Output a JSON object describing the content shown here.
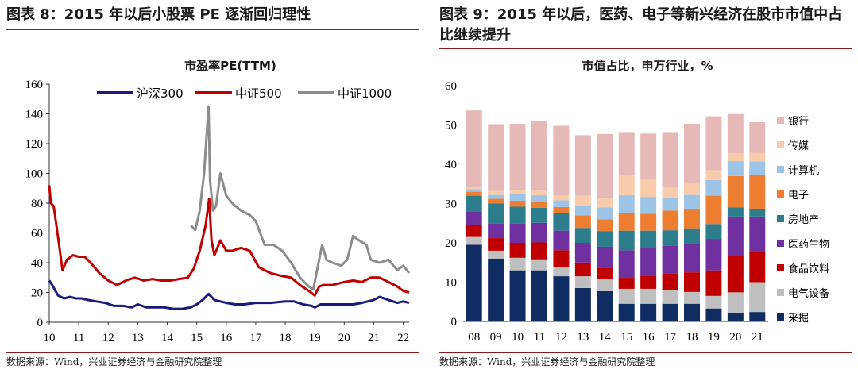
{
  "left": {
    "figure_title": "图表 8：2015 年以后小股票 PE 逐渐回归理性",
    "chart_title": "市盈率PE(TTM)",
    "source": "数据来源：Wind，兴业证券经济与金融研究院整理"
  },
  "right": {
    "figure_title": "图表 9：2015 年以后，医药、电子等新兴经济在股市市值中占比继续提升",
    "chart_title": "市值占比，申万行业，%",
    "source": "数据来源：Wind，兴业证券经济与金融研究院整理"
  },
  "colors": {
    "hs300": "#1a1a7a",
    "zz500": "#c00000",
    "zz1000": "#8c8c8c",
    "rule": "#8a1a1a",
    "采掘": "#0f2d62",
    "电气设备": "#bfbfbf",
    "食品饮料": "#c00000",
    "医药生物": "#7030a0",
    "房地产": "#2e7d8c",
    "电子": "#ed7d31",
    "计算机": "#9dc3e6",
    "传媒": "#f8cbad",
    "银行": "#e6b9b8"
  },
  "chart_data": [
    {
      "type": "line",
      "title": "市盈率PE(TTM)",
      "ylim": [
        0,
        160
      ],
      "y_ticks": [
        0,
        20,
        40,
        60,
        80,
        100,
        120,
        140,
        160
      ],
      "x_tick_labels": [
        "10",
        "11",
        "12",
        "13",
        "14",
        "15",
        "16",
        "17",
        "18",
        "19",
        "20",
        "21",
        "22"
      ],
      "xlim": [
        2010.0,
        2022.2
      ],
      "legend_position": "top",
      "series": [
        {
          "name": "沪深300",
          "x": [
            2010.0,
            2010.1,
            2010.3,
            2010.5,
            2010.7,
            2010.9,
            2011.1,
            2011.3,
            2011.6,
            2011.9,
            2012.2,
            2012.5,
            2012.8,
            2013.0,
            2013.3,
            2013.6,
            2013.9,
            2014.2,
            2014.5,
            2014.8,
            2015.0,
            2015.2,
            2015.4,
            2015.5,
            2015.6,
            2015.8,
            2016.0,
            2016.3,
            2016.6,
            2017.0,
            2017.5,
            2018.0,
            2018.3,
            2018.6,
            2018.9,
            2019.0,
            2019.2,
            2019.5,
            2020.0,
            2020.3,
            2020.6,
            2021.0,
            2021.2,
            2021.5,
            2021.8,
            2022.0,
            2022.2
          ],
          "values": [
            28,
            25,
            18,
            16,
            17,
            16,
            16,
            15,
            14,
            13,
            11,
            11,
            10,
            12,
            10,
            10,
            10,
            9,
            9,
            10,
            12,
            15,
            19,
            17,
            15,
            14,
            13,
            12,
            12,
            13,
            13,
            14,
            14,
            12,
            11,
            10,
            12,
            12,
            12,
            12,
            13,
            15,
            17,
            15,
            13,
            14,
            13
          ]
        },
        {
          "name": "中证500",
          "x": [
            2010.0,
            2010.05,
            2010.15,
            2010.3,
            2010.45,
            2010.6,
            2010.8,
            2011.0,
            2011.2,
            2011.4,
            2011.7,
            2012.0,
            2012.3,
            2012.6,
            2012.9,
            2013.2,
            2013.5,
            2013.8,
            2014.1,
            2014.4,
            2014.7,
            2014.9,
            2015.1,
            2015.3,
            2015.42,
            2015.5,
            2015.6,
            2015.8,
            2016.0,
            2016.2,
            2016.5,
            2016.8,
            2017.1,
            2017.5,
            2017.9,
            2018.2,
            2018.5,
            2018.8,
            2019.0,
            2019.15,
            2019.3,
            2019.6,
            2020.0,
            2020.3,
            2020.6,
            2020.9,
            2021.2,
            2021.5,
            2021.8,
            2022.0,
            2022.2
          ],
          "values": [
            92,
            80,
            78,
            57,
            35,
            42,
            45,
            44,
            44,
            40,
            33,
            28,
            25,
            28,
            30,
            28,
            29,
            28,
            28,
            29,
            30,
            36,
            48,
            65,
            83,
            55,
            45,
            55,
            48,
            48,
            50,
            48,
            37,
            33,
            31,
            30,
            25,
            21,
            18,
            24,
            25,
            25,
            27,
            28,
            27,
            30,
            30,
            27,
            24,
            21,
            20
          ]
        },
        {
          "name": "中证1000",
          "x": [
            2014.8,
            2014.95,
            2015.1,
            2015.25,
            2015.4,
            2015.45,
            2015.55,
            2015.65,
            2015.8,
            2016.0,
            2016.2,
            2016.5,
            2016.8,
            2017.0,
            2017.3,
            2017.6,
            2017.9,
            2018.2,
            2018.5,
            2018.8,
            2018.95,
            2019.1,
            2019.25,
            2019.4,
            2019.6,
            2019.9,
            2020.1,
            2020.3,
            2020.5,
            2020.75,
            2020.9,
            2021.2,
            2021.5,
            2021.8,
            2022.0,
            2022.2
          ],
          "values": [
            65,
            62,
            75,
            100,
            145,
            95,
            75,
            78,
            100,
            85,
            80,
            75,
            72,
            68,
            52,
            52,
            48,
            40,
            30,
            24,
            22,
            37,
            52,
            42,
            40,
            38,
            42,
            58,
            55,
            52,
            42,
            40,
            42,
            35,
            38,
            33
          ]
        }
      ]
    },
    {
      "type": "bar",
      "stacked": true,
      "title": "市值占比，申万行业，%",
      "categories": [
        "08",
        "09",
        "10",
        "11",
        "12",
        "13",
        "14",
        "15",
        "16",
        "17",
        "18",
        "19",
        "20",
        "21"
      ],
      "ylim": [
        0,
        60
      ],
      "y_ticks": [
        0,
        10,
        20,
        30,
        40,
        50,
        60
      ],
      "legend_position": "right",
      "series": [
        {
          "name": "采掘",
          "values": [
            19.5,
            16.0,
            13.0,
            13.0,
            11.5,
            8.5,
            7.7,
            4.5,
            4.5,
            4.5,
            4.5,
            3.3,
            2.2,
            2.4
          ]
        },
        {
          "name": "电气设备",
          "values": [
            2.0,
            2.0,
            3.2,
            2.8,
            2.3,
            3.0,
            3.0,
            3.8,
            3.8,
            3.5,
            3.0,
            3.2,
            5.2,
            7.6
          ]
        },
        {
          "name": "食品饮料",
          "values": [
            3.0,
            3.2,
            3.8,
            4.3,
            4.3,
            3.5,
            3.0,
            2.8,
            3.3,
            4.2,
            5.0,
            6.5,
            9.3,
            7.7
          ]
        },
        {
          "name": "医药生物",
          "values": [
            3.5,
            3.8,
            5.0,
            5.0,
            5.0,
            5.0,
            5.3,
            7.0,
            7.0,
            7.0,
            7.2,
            8.0,
            10.0,
            9.0
          ]
        },
        {
          "name": "房地产",
          "values": [
            4.0,
            5.0,
            4.2,
            3.8,
            4.5,
            3.8,
            4.0,
            5.0,
            4.5,
            4.0,
            4.0,
            3.8,
            2.3,
            2.0
          ]
        },
        {
          "name": "电子",
          "values": [
            1.0,
            1.2,
            1.5,
            1.5,
            1.5,
            3.2,
            3.0,
            4.5,
            4.3,
            5.0,
            5.0,
            7.2,
            8.0,
            8.5
          ]
        },
        {
          "name": "计算机",
          "values": [
            0.7,
            1.0,
            1.8,
            1.7,
            1.7,
            2.5,
            3.0,
            4.5,
            4.3,
            3.3,
            3.5,
            4.0,
            3.8,
            3.5
          ]
        },
        {
          "name": "传媒",
          "values": [
            0.5,
            1.0,
            1.0,
            1.2,
            1.2,
            2.5,
            2.3,
            5.0,
            4.5,
            2.8,
            2.8,
            2.5,
            2.0,
            2.2
          ]
        },
        {
          "name": "银行",
          "values": [
            19.5,
            17.0,
            16.8,
            17.7,
            17.8,
            15.4,
            16.4,
            11.1,
            11.6,
            13.9,
            15.3,
            13.7,
            10.0,
            7.8
          ]
        }
      ]
    }
  ]
}
